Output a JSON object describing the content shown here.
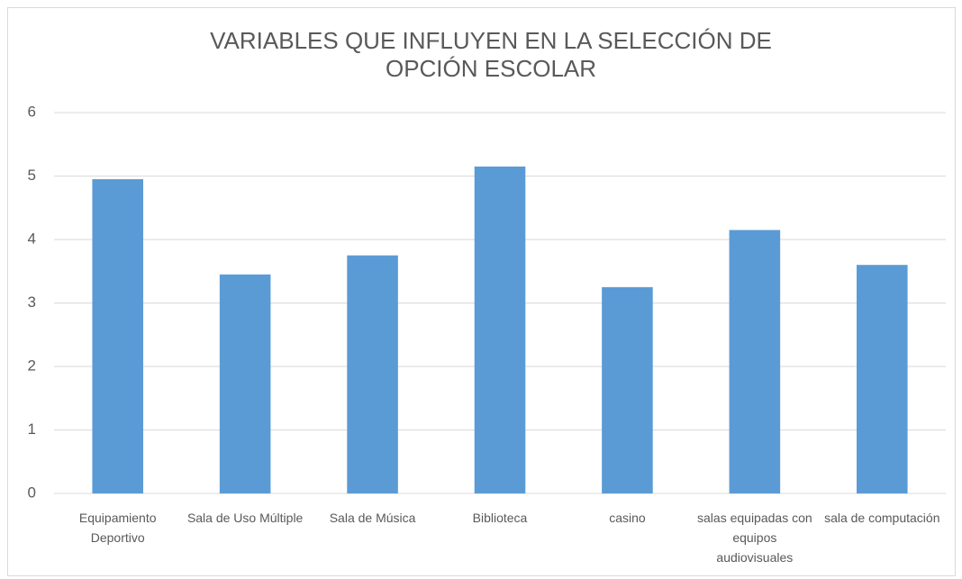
{
  "chart_data": {
    "type": "bar",
    "title": "VARIABLES QUE INFLUYEN EN LA SELECCIÓN DE OPCIÓN ESCOLAR",
    "categories": [
      "Equipamiento Deportivo",
      "Sala de Uso Múltiple",
      "Sala de Música",
      "Biblioteca",
      "casino",
      "salas equipadas con equipos audiovisuales",
      "sala de computación"
    ],
    "values": [
      4.95,
      3.45,
      3.75,
      5.15,
      3.25,
      4.15,
      3.6
    ],
    "color": "#5b9bd5",
    "ylim": [
      0,
      6
    ],
    "yticks": [
      0,
      1,
      2,
      3,
      4,
      5,
      6
    ],
    "grid": true
  }
}
